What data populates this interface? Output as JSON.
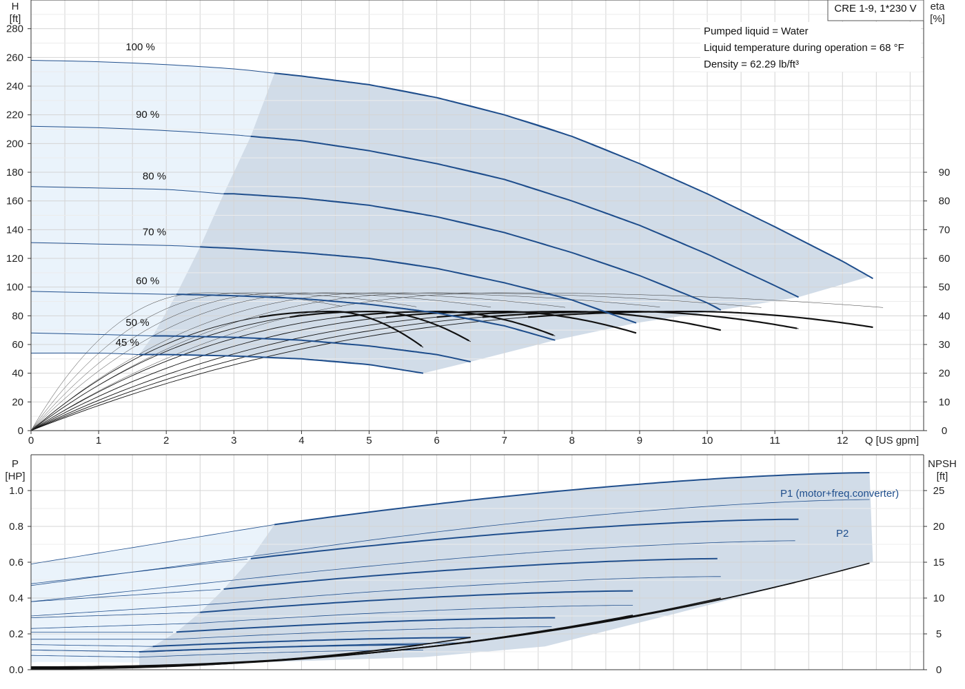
{
  "chart_data": [
    {
      "type": "line",
      "name_box": "CRE 1-9, 1*230 V",
      "info_lines": [
        "Pumped liquid = Water",
        "Liquid temperature during operation = 68 °F",
        "Density = 62.29 lb/ft³"
      ],
      "y_left_label": [
        "H",
        "[ft]"
      ],
      "y_right_label": [
        "eta",
        "[%]"
      ],
      "xlabel": "Q [US gpm]",
      "xlim": [
        0,
        13.2
      ],
      "ylim_left": [
        0,
        300
      ],
      "ylim_right": [
        0,
        150
      ],
      "x_ticks": [
        0,
        1,
        2,
        3,
        4,
        5,
        6,
        7,
        8,
        9,
        10,
        11,
        12
      ],
      "y_left_ticks": [
        0,
        20,
        40,
        60,
        80,
        100,
        120,
        140,
        160,
        180,
        200,
        220,
        240,
        260,
        280
      ],
      "y_right_ticks": [
        0,
        10,
        20,
        30,
        40,
        50,
        60,
        70,
        80,
        90
      ],
      "grid": true,
      "colors": {
        "curve": "#1f4e8c",
        "fill_dark": "#d1dce8",
        "fill_light": "#eaf3fb",
        "eff": "#111111"
      },
      "speed_curves": [
        {
          "label": "100 %",
          "label_x": 1.4,
          "label_y": 265,
          "x": [
            0,
            1,
            2,
            3,
            3.6,
            4,
            5,
            6,
            7,
            8,
            9,
            10,
            11,
            12,
            12.45
          ],
          "y": [
            258,
            257,
            255,
            252,
            249,
            247,
            241,
            232,
            220,
            205,
            186,
            165,
            142,
            118,
            106
          ]
        },
        {
          "label": "90 %",
          "label_x": 1.55,
          "label_y": 218,
          "x": [
            0,
            1,
            2,
            3,
            3.25,
            4,
            5,
            6,
            7,
            8,
            9,
            10,
            11,
            11.35
          ],
          "y": [
            212,
            211,
            209,
            206,
            205,
            202,
            195,
            186,
            175,
            160,
            143,
            123,
            101,
            93
          ]
        },
        {
          "label": "80 %",
          "label_x": 1.65,
          "label_y": 175,
          "x": [
            0,
            1,
            2,
            2.85,
            3,
            4,
            5,
            6,
            7,
            8,
            9,
            10,
            10.2
          ],
          "y": [
            170,
            169,
            168,
            165,
            165,
            162,
            157,
            149,
            138,
            124,
            108,
            89,
            84
          ]
        },
        {
          "label": "70 %",
          "label_x": 1.65,
          "label_y": 136,
          "x": [
            0,
            1,
            2,
            2.5,
            3,
            4,
            5,
            6,
            7,
            8,
            8.95
          ],
          "y": [
            131,
            130,
            129,
            128,
            127,
            124,
            120,
            113,
            103,
            91,
            75
          ]
        },
        {
          "label": "60 %",
          "label_x": 1.55,
          "label_y": 102,
          "x": [
            0,
            1,
            2,
            2.15,
            3,
            4,
            5,
            6,
            7,
            7.75
          ],
          "y": [
            97,
            96,
            95,
            95,
            94,
            92,
            88,
            82,
            73,
            63
          ]
        },
        {
          "label": "50 %",
          "label_x": 1.4,
          "label_y": 73,
          "x": [
            0,
            1,
            1.8,
            2,
            3,
            4,
            5,
            6,
            6.5
          ],
          "y": [
            68,
            67,
            66,
            66,
            65,
            63,
            59,
            53,
            48
          ]
        },
        {
          "label": "45 %",
          "label_x": 1.25,
          "label_y": 59,
          "x": [
            0,
            1,
            1.6,
            2,
            3,
            4,
            5,
            5.8
          ],
          "y": [
            54,
            54,
            53,
            53,
            52,
            50,
            46,
            40
          ]
        }
      ],
      "eff_curves": [
        {
          "bep_x": 4.5,
          "end_x": 5.8,
          "end_y": 29
        },
        {
          "bep_x": 5.1,
          "end_x": 6.5,
          "end_y": 31
        },
        {
          "bep_x": 6.1,
          "end_x": 7.75,
          "end_y": 33
        },
        {
          "bep_x": 7.0,
          "end_x": 8.95,
          "end_y": 34
        },
        {
          "bep_x": 8.0,
          "end_x": 10.2,
          "end_y": 35
        },
        {
          "bep_x": 8.9,
          "end_x": 11.35,
          "end_y": 35.5
        },
        {
          "bep_x": 9.8,
          "end_x": 12.45,
          "end_y": 36
        }
      ],
      "eff_peak": 41.5
    },
    {
      "type": "line",
      "y_left_label": [
        "P",
        "[HP]"
      ],
      "y_right_label": [
        "NPSH",
        "[ft]"
      ],
      "xlim": [
        0,
        13.2
      ],
      "ylim_left": [
        0,
        1.2
      ],
      "ylim_right": [
        0,
        30
      ],
      "y_left_ticks": [
        0.0,
        0.2,
        0.4,
        0.6,
        0.8,
        1.0
      ],
      "y_left_tick_labels": [
        "0.0",
        "0.2",
        "0.4",
        "0.6",
        "0.8",
        "1.0"
      ],
      "y_right_ticks": [
        0,
        5,
        10,
        15,
        20,
        25
      ],
      "series_labels": {
        "p1": "P1 (motor+freq.converter)",
        "p2": "P2"
      },
      "p1_curves": [
        {
          "x": [
            0,
            3.6,
            12.45
          ],
          "y": [
            0.59,
            0.81,
            1.1
          ]
        },
        {
          "x": [
            0,
            3.25,
            11.35
          ],
          "y": [
            0.48,
            0.62,
            0.84
          ]
        },
        {
          "x": [
            0,
            2.85,
            10.2
          ],
          "y": [
            0.38,
            0.45,
            0.62
          ]
        },
        {
          "x": [
            0,
            2.5,
            8.95
          ],
          "y": [
            0.29,
            0.32,
            0.44
          ]
        },
        {
          "x": [
            0,
            2.15,
            7.75
          ],
          "y": [
            0.21,
            0.21,
            0.29
          ]
        },
        {
          "x": [
            0,
            1.8,
            6.5
          ],
          "y": [
            0.14,
            0.13,
            0.18
          ]
        },
        {
          "x": [
            0,
            1.6,
            5.8
          ],
          "y": [
            0.11,
            0.1,
            0.14
          ]
        }
      ],
      "p2_curves": [
        {
          "x": [
            0,
            3.6,
            12.45
          ],
          "y": [
            0.47,
            0.65,
            0.95
          ]
        },
        {
          "x": [
            0,
            3.25,
            11.35
          ],
          "y": [
            0.38,
            0.51,
            0.72
          ]
        },
        {
          "x": [
            0,
            2.85,
            10.2
          ],
          "y": [
            0.3,
            0.37,
            0.52
          ]
        },
        {
          "x": [
            0,
            2.5,
            8.95
          ],
          "y": [
            0.23,
            0.26,
            0.36
          ]
        },
        {
          "x": [
            0,
            2.15,
            7.75
          ],
          "y": [
            0.17,
            0.17,
            0.24
          ]
        },
        {
          "x": [
            0,
            1.8,
            6.5
          ],
          "y": [
            0.11,
            0.1,
            0.15
          ]
        },
        {
          "x": [
            0,
            1.6,
            5.8
          ],
          "y": [
            0.08,
            0.07,
            0.11
          ]
        }
      ],
      "npsh_curves": [
        {
          "x": [
            0,
            12.45
          ],
          "y": [
            0.4,
            15
          ]
        },
        {
          "x": [
            0,
            11.35
          ],
          "y": [
            0.35,
            12.3
          ]
        },
        {
          "x": [
            0,
            10.2
          ],
          "y": [
            0.3,
            10
          ]
        },
        {
          "x": [
            0,
            8.95
          ],
          "y": [
            0.25,
            7.7
          ]
        },
        {
          "x": [
            0,
            7.75
          ],
          "y": [
            0.2,
            5.7
          ]
        },
        {
          "x": [
            0,
            6.5
          ],
          "y": [
            0.15,
            4.5
          ]
        },
        {
          "x": [
            0,
            5.8
          ],
          "y": [
            0.1,
            3.5
          ]
        }
      ]
    }
  ]
}
